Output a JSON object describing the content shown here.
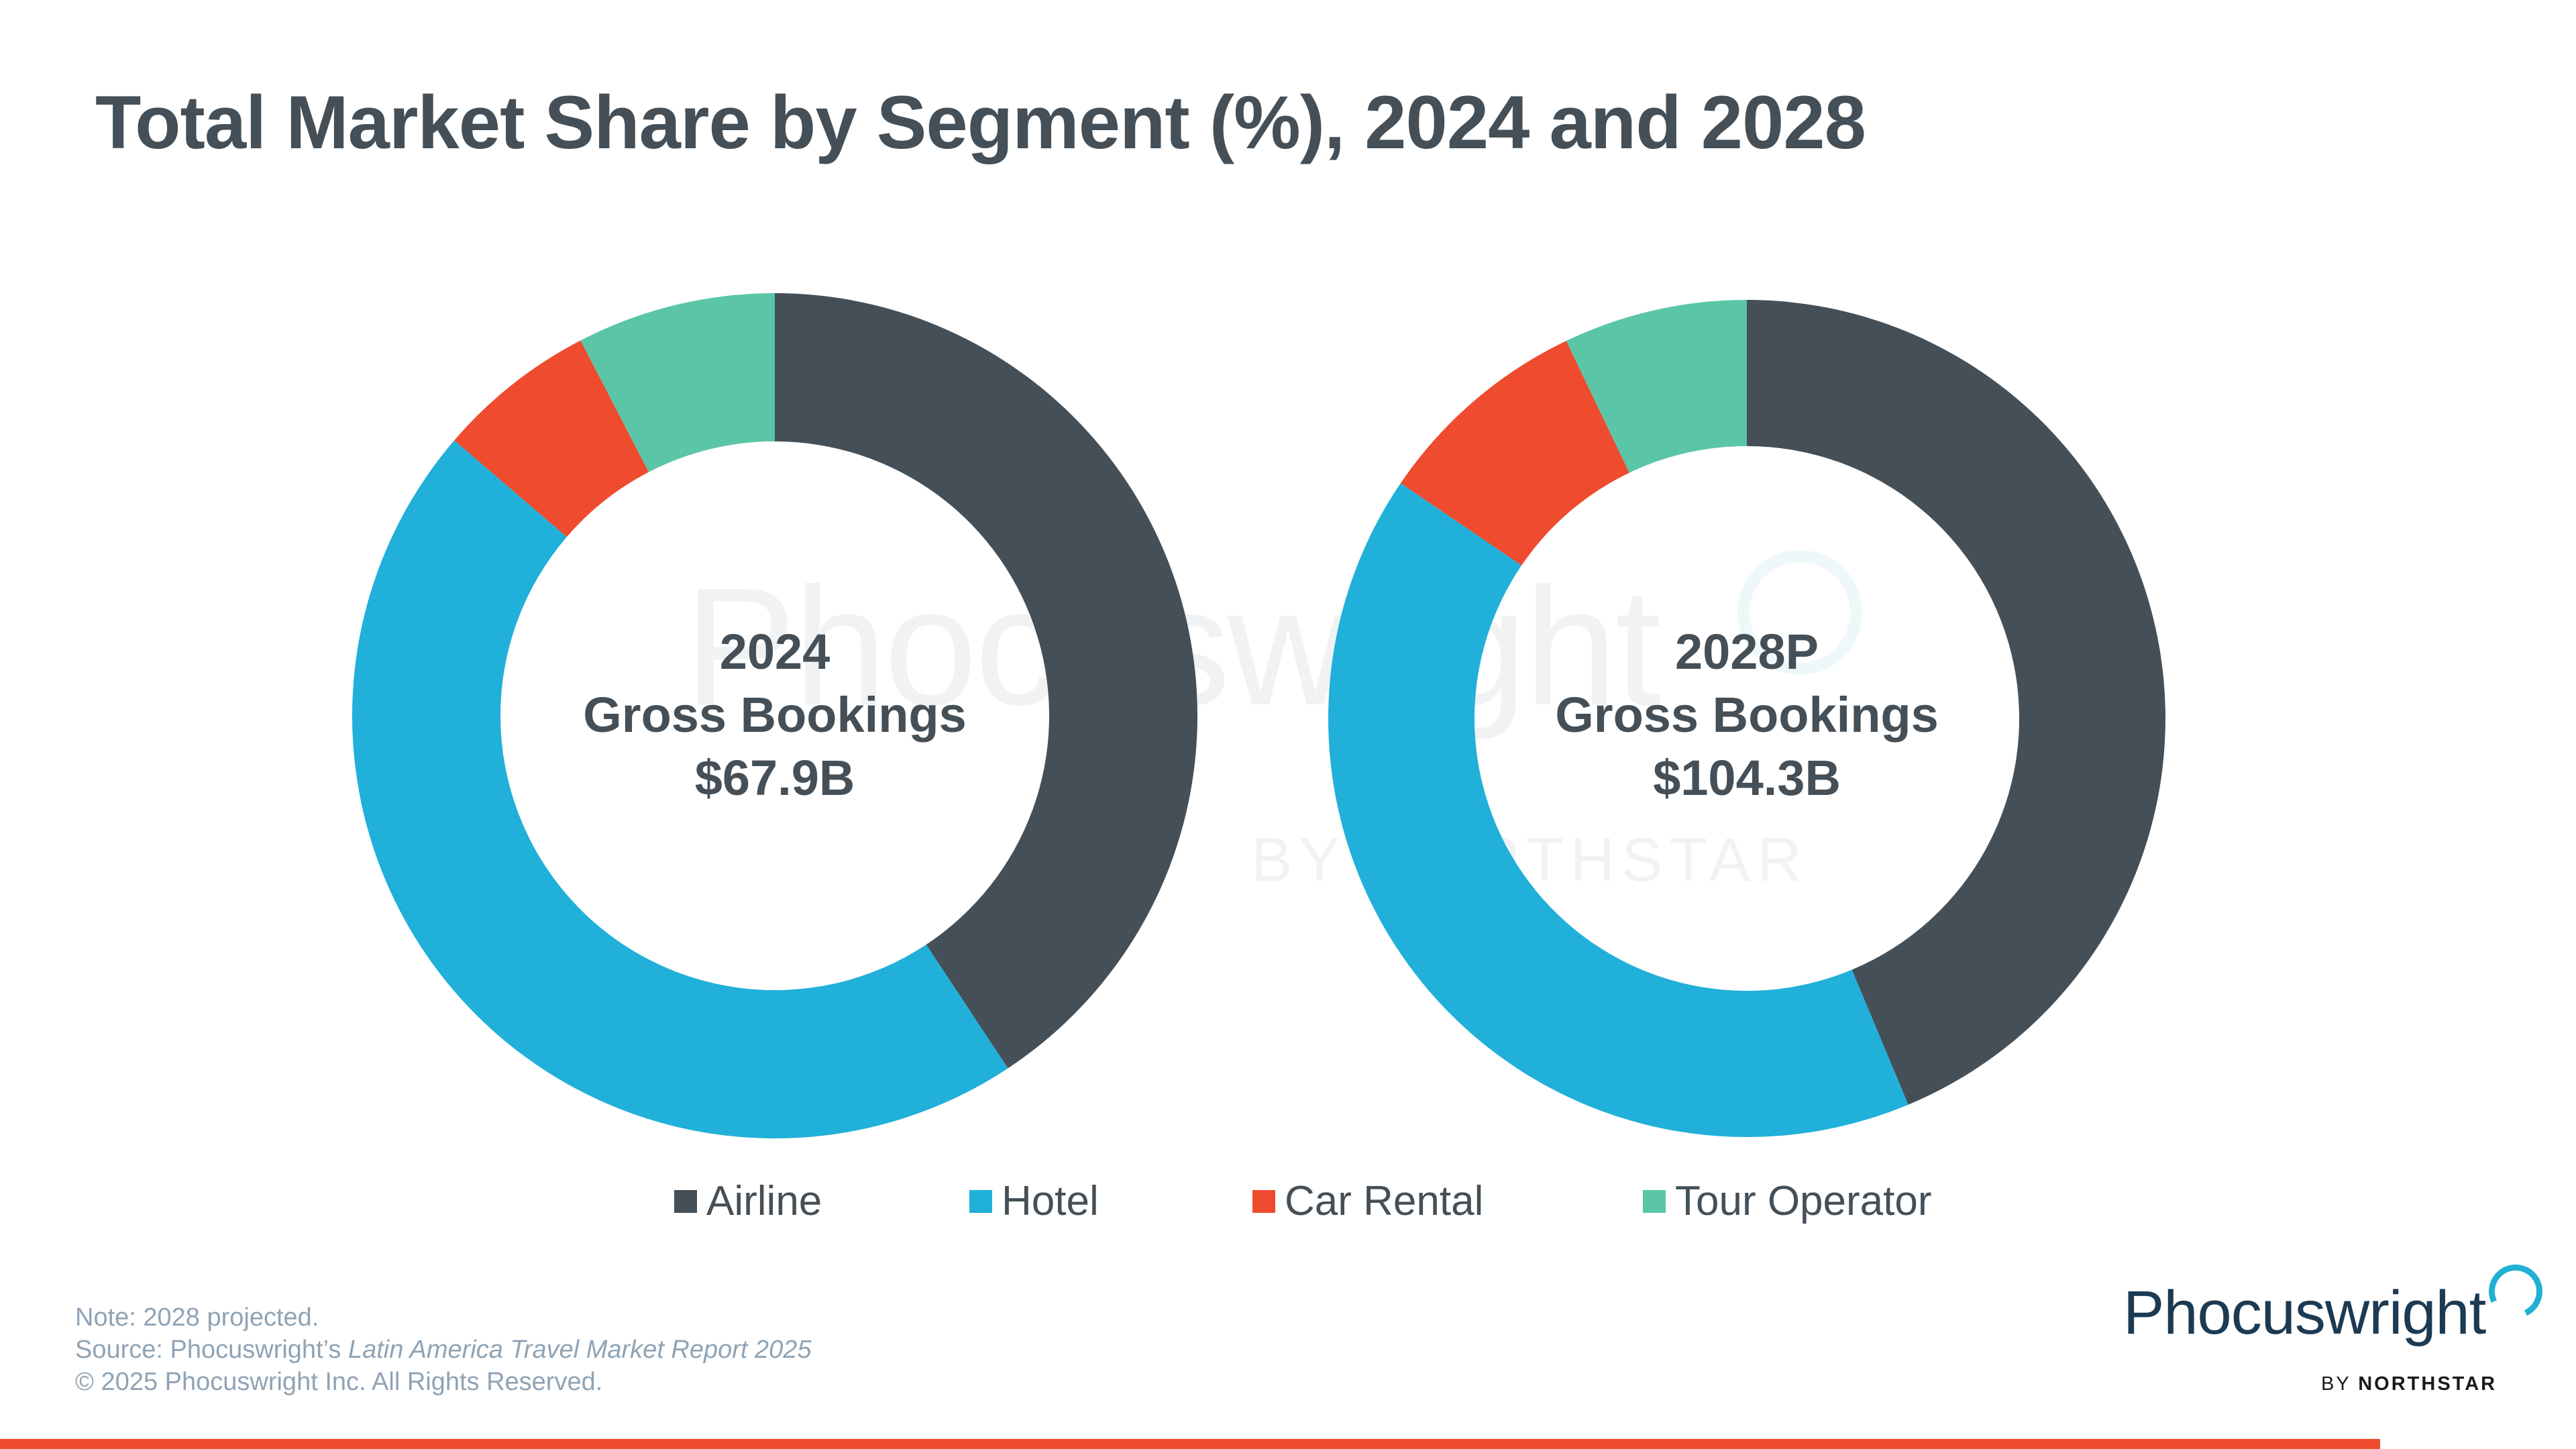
{
  "title": "Total Market Share by Segment (%), 2024 and 2028",
  "watermark": {
    "word": "Phocuswright",
    "sub": "BY NORTHSTAR"
  },
  "colors": {
    "Airline": "#454f57",
    "Hotel": "#20b0d9",
    "Car Rental": "#ef4b2e",
    "Tour Operator": "#5bc5a7",
    "text": "#454f57",
    "accent_bar": "#ef4b2e"
  },
  "chart_data": [
    {
      "type": "pie",
      "subtype": "donut",
      "title": "2024 Gross Bookings $67.9B",
      "center_label": {
        "year": "2024",
        "metric": "Gross Bookings",
        "value": "$67.9B"
      },
      "categories": [
        "Airline",
        "Hotel",
        "Car Rental",
        "Tour Operator"
      ],
      "values": [
        40.7,
        45.6,
        6.1,
        7.6
      ],
      "units": "%",
      "start_angle": "top, clockwise"
    },
    {
      "type": "pie",
      "subtype": "donut",
      "title": "2028P Gross Bookings $104.3B",
      "center_label": {
        "year": "2028P",
        "metric": "Gross Bookings",
        "value": "$104.3B"
      },
      "categories": [
        "Airline",
        "Hotel",
        "Car Rental",
        "Tour Operator"
      ],
      "values": [
        43.7,
        40.8,
        8.4,
        7.1
      ],
      "units": "%",
      "start_angle": "top, clockwise"
    }
  ],
  "legend": {
    "placement": "bottom",
    "items": [
      {
        "label": "Airline",
        "color": "#454f57"
      },
      {
        "label": "Hotel",
        "color": "#20b0d9"
      },
      {
        "label": "Car Rental",
        "color": "#ef4b2e"
      },
      {
        "label": "Tour Operator",
        "color": "#5bc5a7"
      }
    ]
  },
  "footnote": {
    "note": "Note: 2028 projected.",
    "source_prefix": "Source: Phocuswright’s ",
    "source_title": "Latin America Travel Market Report 2025",
    "copyright": "© 2025 Phocuswright Inc. All Rights Reserved."
  },
  "logo": {
    "word": "Phocuswright",
    "by": "BY ",
    "brand": "NORTHSTAR"
  }
}
